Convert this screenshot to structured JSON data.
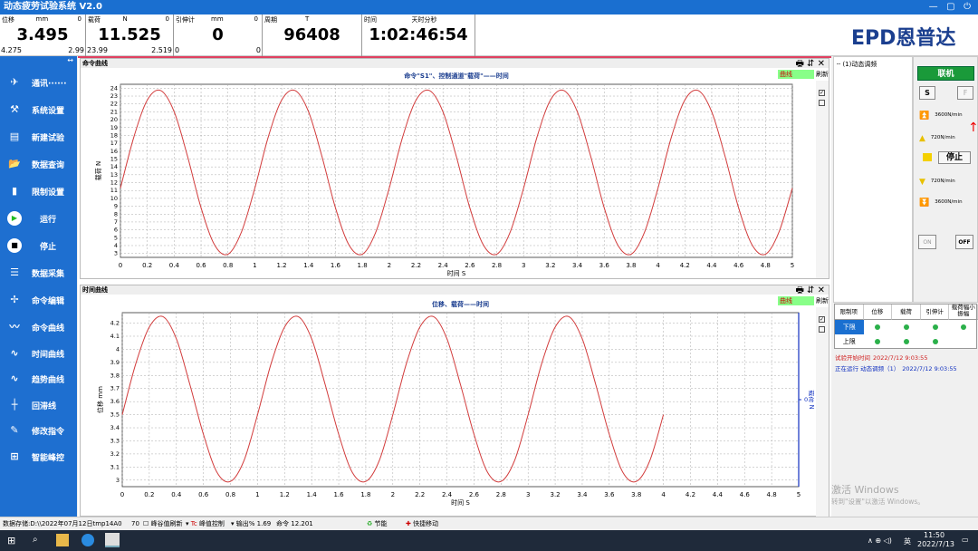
{
  "window": {
    "title": "动态疲劳试验系统 V2.0",
    "logo": "EPD恩普达"
  },
  "readouts": [
    {
      "label": "位移",
      "unit": "mm",
      "zero": 0,
      "value": 3.495,
      "left": 4.275,
      "right": 2.99
    },
    {
      "label": "载荷",
      "unit": "N",
      "zero": 0,
      "value": 11.525,
      "left": 23.99,
      "right": 2.519
    },
    {
      "label": "引伸计",
      "unit": "mm",
      "zero": 0,
      "value": 0,
      "left": 0,
      "right": 0
    },
    {
      "label": "周期",
      "unit": "T",
      "value": 96408
    },
    {
      "label": "时间",
      "unit": "天时分秒",
      "value": "1:02:46:54"
    }
  ],
  "sidebar": [
    "通讯······",
    "系统设置",
    "新建试验",
    "数据查询",
    "限制设置",
    "运行",
    "停止",
    "数据采集",
    "命令编辑",
    "命令曲线",
    "时间曲线",
    "趋势曲线",
    "回滞线",
    "修改指令",
    "智能峰控"
  ],
  "panels": [
    {
      "title": "命令曲线",
      "tab": "曲线",
      "refresh": "刷新"
    },
    {
      "title": "时间曲线",
      "tab": "曲线",
      "refresh": "刷新"
    }
  ],
  "chart_data": [
    {
      "type": "line",
      "title": "命令\"S1\"、控制通道\"载荷\"——时间",
      "x_label": "时间 S",
      "y_label": "载荷 N",
      "color": "#d23c3c",
      "grid": true,
      "xlim": [
        0,
        5
      ],
      "xticks": [
        0,
        0.2,
        0.4,
        0.6,
        0.8,
        1,
        1.2,
        1.4,
        1.6,
        1.8,
        2,
        2.2,
        2.4,
        2.6,
        2.8,
        3,
        3.2,
        3.4,
        3.6,
        3.8,
        4,
        4.2,
        4.4,
        4.6,
        4.8,
        5
      ],
      "ylim": [
        2.5,
        24.5
      ],
      "yticks": [
        3,
        4,
        5,
        6,
        7,
        8,
        9,
        10,
        11,
        12,
        13,
        14,
        15,
        16,
        17,
        18,
        19,
        20,
        21,
        22,
        23,
        24
      ],
      "x": [
        0,
        0.1,
        0.2,
        0.3,
        0.4,
        0.5,
        0.6,
        0.7,
        0.8,
        0.9,
        1,
        1.1,
        1.2,
        1.3,
        1.4,
        1.5,
        1.6,
        1.7,
        1.8,
        1.9,
        2,
        2.1,
        2.2,
        2.3,
        2.4,
        2.5,
        2.6,
        2.7,
        2.8,
        2.9,
        3,
        3.1,
        3.2,
        3.3,
        3.4,
        3.5,
        3.6,
        3.7,
        3.8,
        3.9,
        4,
        4.1,
        4.2,
        4.3,
        4.4,
        4.5,
        4.6,
        4.7,
        4.8,
        4.9,
        5
      ],
      "values": [
        11.3,
        17.8,
        22.5,
        23.7,
        21.0,
        15.3,
        8.8,
        4.1,
        2.9,
        5.7,
        11.3,
        17.8,
        22.5,
        23.7,
        21.0,
        15.3,
        8.8,
        4.1,
        2.9,
        5.7,
        11.3,
        17.8,
        22.5,
        23.7,
        21.0,
        15.3,
        8.8,
        4.1,
        2.9,
        5.7,
        11.3,
        17.8,
        22.5,
        23.7,
        21.0,
        15.3,
        8.8,
        4.1,
        2.9,
        5.7,
        11.3,
        17.8,
        22.5,
        23.7,
        21.0,
        15.3,
        8.8,
        4.1,
        2.9,
        5.7,
        11.3
      ]
    },
    {
      "type": "line",
      "title": "位移、载荷——时间",
      "x_label": "时间 S",
      "y_label": "位移 mm",
      "y2_label": "载荷 N",
      "color": "#d23c3c",
      "grid": true,
      "xlim": [
        0,
        5
      ],
      "xticks": [
        0,
        0.2,
        0.4,
        0.6,
        0.8,
        1,
        1.2,
        1.4,
        1.6,
        1.8,
        2,
        2.2,
        2.4,
        2.6,
        2.8,
        3,
        3.2,
        3.4,
        3.6,
        3.8,
        4,
        4.2,
        4.4,
        4.6,
        4.8,
        5
      ],
      "ylim": [
        2.95,
        4.28
      ],
      "yticks": [
        3,
        3.1,
        3.2,
        3.3,
        3.4,
        3.5,
        3.6,
        3.7,
        3.8,
        3.9,
        4,
        4.1,
        4.2
      ],
      "y2lim": [
        -1,
        1
      ],
      "y2ticks": [
        0
      ],
      "x": [
        0,
        0.1,
        0.2,
        0.3,
        0.4,
        0.5,
        0.6,
        0.7,
        0.8,
        0.9,
        1,
        1.1,
        1.2,
        1.3,
        1.4,
        1.5,
        1.6,
        1.7,
        1.8,
        1.9,
        2,
        2.1,
        2.2,
        2.3,
        2.4,
        2.5,
        2.6,
        2.7,
        2.8,
        2.9,
        3,
        3.1,
        3.2,
        3.3,
        3.4,
        3.5,
        3.6,
        3.7,
        3.8,
        3.9,
        4
      ],
      "values": [
        3.5,
        3.89,
        4.17,
        4.25,
        4.08,
        3.73,
        3.35,
        3.06,
        2.99,
        3.15,
        3.5,
        3.89,
        4.17,
        4.25,
        4.08,
        3.73,
        3.35,
        3.06,
        2.99,
        3.15,
        3.5,
        3.89,
        4.17,
        4.25,
        4.08,
        3.73,
        3.35,
        3.06,
        2.99,
        3.15,
        3.5,
        3.89,
        4.17,
        4.25,
        4.08,
        3.73,
        3.35,
        3.06,
        2.99,
        3.15,
        3.5
      ]
    }
  ],
  "tree": {
    "item": "(1)动态调频"
  },
  "controls": {
    "online": "联机",
    "s": "S",
    "f": "F",
    "up_fast": "3600N/min",
    "up_slow": "720N/min",
    "stop": "停止",
    "down_slow": "720N/min",
    "down_fast": "3600N/min",
    "on": "ON",
    "off": "OFF"
  },
  "limit_table": {
    "header": [
      "限制项",
      "位移",
      "载荷",
      "引伸计",
      "载荷幅小振幅"
    ],
    "rows": [
      "下限",
      "上限"
    ]
  },
  "log": [
    {
      "label": "试验开始时间",
      "time": "2022/7/12 9:03:55"
    },
    {
      "label": "正在运行 动态调频（1）",
      "time": "2022/7/12 9:03:55"
    }
  ],
  "watermark": {
    "title": "激活 Windows",
    "hint": "转到\"设置\"以激活 Windows。"
  },
  "status_bar": {
    "storage": "数据存储:D:\\\\2022年07月12日tmp14A0",
    "count": 70,
    "peak_refresh": "峰谷值刷新",
    "peak_control": "峰值控制",
    "output_label": "输出%",
    "output": 1.69,
    "command_label": "命令",
    "command": 12.201,
    "save": "节能",
    "move": "快捷移动"
  },
  "taskbar": {
    "lang": "英",
    "time": "11:50",
    "date": "2022/7/13"
  }
}
